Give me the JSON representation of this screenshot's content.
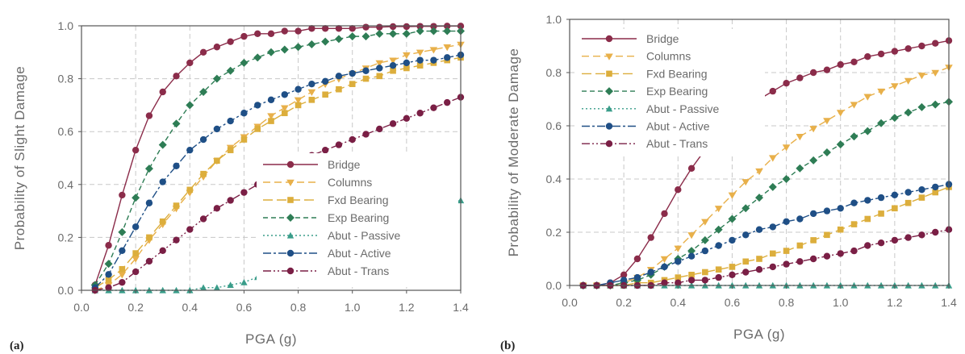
{
  "chart_data": [
    {
      "type": "line",
      "panel_label": "(a)",
      "xlabel": "PGA (g)",
      "ylabel": "Probability of Slight Damage",
      "xlim": [
        0.0,
        1.4
      ],
      "ylim": [
        0.0,
        1.0
      ],
      "x_ticks": [
        "0.0",
        "0.2",
        "0.4",
        "0.6",
        "0.8",
        "1.0",
        "1.2",
        "1.4"
      ],
      "y_ticks": [
        "0.0",
        "0.2",
        "0.4",
        "0.6",
        "0.8",
        "1.0"
      ],
      "grid": true,
      "legend_position": "bottom-right",
      "x": [
        0.05,
        0.1,
        0.15,
        0.2,
        0.25,
        0.3,
        0.35,
        0.4,
        0.45,
        0.5,
        0.55,
        0.6,
        0.65,
        0.7,
        0.75,
        0.8,
        0.85,
        0.9,
        0.95,
        1.0,
        1.05,
        1.1,
        1.15,
        1.2,
        1.25,
        1.3,
        1.35,
        1.4
      ],
      "series": [
        {
          "name": "Bridge",
          "color": "#8b2c4a",
          "marker": "circle",
          "dash": "",
          "values": [
            0.02,
            0.17,
            0.36,
            0.53,
            0.66,
            0.75,
            0.81,
            0.86,
            0.9,
            0.92,
            0.94,
            0.96,
            0.97,
            0.97,
            0.98,
            0.98,
            0.99,
            0.99,
            0.99,
            0.99,
            0.995,
            0.995,
            0.997,
            0.997,
            0.998,
            0.998,
            0.999,
            0.999
          ]
        },
        {
          "name": "Columns",
          "color": "#e8b04a",
          "marker": "triangle-down",
          "dash": "9,5",
          "values": [
            0.0,
            0.02,
            0.06,
            0.12,
            0.19,
            0.25,
            0.31,
            0.37,
            0.43,
            0.49,
            0.54,
            0.58,
            0.62,
            0.66,
            0.69,
            0.72,
            0.75,
            0.78,
            0.8,
            0.82,
            0.84,
            0.86,
            0.87,
            0.89,
            0.9,
            0.91,
            0.92,
            0.93
          ]
        },
        {
          "name": "Fxd Bearing",
          "color": "#dcae3c",
          "marker": "square",
          "dash": "12,5",
          "values": [
            0.01,
            0.04,
            0.08,
            0.14,
            0.2,
            0.26,
            0.32,
            0.38,
            0.44,
            0.49,
            0.53,
            0.57,
            0.61,
            0.64,
            0.67,
            0.7,
            0.72,
            0.74,
            0.76,
            0.78,
            0.8,
            0.81,
            0.83,
            0.84,
            0.85,
            0.86,
            0.87,
            0.88
          ]
        },
        {
          "name": "Exp Bearing",
          "color": "#2e7d55",
          "marker": "diamond",
          "dash": "6,4",
          "values": [
            0.02,
            0.1,
            0.22,
            0.35,
            0.46,
            0.55,
            0.63,
            0.7,
            0.75,
            0.8,
            0.83,
            0.86,
            0.88,
            0.9,
            0.91,
            0.92,
            0.93,
            0.94,
            0.95,
            0.96,
            0.96,
            0.97,
            0.97,
            0.97,
            0.98,
            0.98,
            0.98,
            0.98
          ]
        },
        {
          "name": "Abut - Passive",
          "color": "#3a9d8a",
          "marker": "triangle-up",
          "dash": "2,3",
          "values": [
            0.0,
            0.0,
            0.0,
            0.0,
            0.0,
            0.0,
            0.0,
            0.0,
            0.01,
            0.01,
            0.02,
            0.03,
            0.05,
            0.07,
            0.09,
            0.11,
            0.13,
            0.16,
            0.18,
            0.21,
            0.23,
            0.25,
            0.27,
            0.29,
            0.31,
            0.32,
            0.33,
            0.34
          ]
        },
        {
          "name": "Abut - Active",
          "color": "#1f4f86",
          "marker": "circle",
          "dash": "10,3,3,3",
          "values": [
            0.01,
            0.06,
            0.15,
            0.24,
            0.33,
            0.41,
            0.47,
            0.53,
            0.57,
            0.61,
            0.64,
            0.67,
            0.7,
            0.72,
            0.74,
            0.76,
            0.78,
            0.79,
            0.81,
            0.82,
            0.83,
            0.84,
            0.85,
            0.86,
            0.87,
            0.87,
            0.88,
            0.89
          ]
        },
        {
          "name": "Abut - Trans",
          "color": "#7a1f45",
          "marker": "circle",
          "dash": "10,3,2,3,2,3",
          "values": [
            0.0,
            0.01,
            0.03,
            0.07,
            0.11,
            0.15,
            0.19,
            0.23,
            0.27,
            0.31,
            0.34,
            0.37,
            0.4,
            0.43,
            0.46,
            0.48,
            0.51,
            0.53,
            0.55,
            0.57,
            0.59,
            0.61,
            0.63,
            0.65,
            0.67,
            0.69,
            0.71,
            0.73
          ]
        }
      ]
    },
    {
      "type": "line",
      "panel_label": "(b)",
      "xlabel": "PGA (g)",
      "ylabel": "Probability of Moderate Damage",
      "xlim": [
        0.0,
        1.4
      ],
      "ylim": [
        0.0,
        1.0
      ],
      "x_ticks": [
        "0.0",
        "0.2",
        "0.4",
        "0.6",
        "0.8",
        "1.0",
        "1.2",
        "1.4"
      ],
      "y_ticks": [
        "0.0",
        "0.2",
        "0.4",
        "0.6",
        "0.8",
        "1.0"
      ],
      "grid": true,
      "legend_position": "top-left",
      "x": [
        0.05,
        0.1,
        0.15,
        0.2,
        0.25,
        0.3,
        0.35,
        0.4,
        0.45,
        0.5,
        0.55,
        0.6,
        0.65,
        0.7,
        0.75,
        0.8,
        0.85,
        0.9,
        0.95,
        1.0,
        1.05,
        1.1,
        1.15,
        1.2,
        1.25,
        1.3,
        1.35,
        1.4
      ],
      "series": [
        {
          "name": "Bridge",
          "color": "#8b2c4a",
          "marker": "circle",
          "dash": "",
          "values": [
            0.0,
            0.0,
            0.01,
            0.04,
            0.1,
            0.18,
            0.27,
            0.36,
            0.44,
            0.51,
            0.57,
            0.63,
            0.67,
            0.7,
            0.73,
            0.76,
            0.78,
            0.8,
            0.81,
            0.83,
            0.84,
            0.86,
            0.87,
            0.88,
            0.89,
            0.9,
            0.91,
            0.92
          ]
        },
        {
          "name": "Columns",
          "color": "#e8b04a",
          "marker": "triangle-down",
          "dash": "9,5",
          "values": [
            0.0,
            0.0,
            0.0,
            0.01,
            0.03,
            0.06,
            0.1,
            0.14,
            0.19,
            0.24,
            0.29,
            0.34,
            0.39,
            0.43,
            0.48,
            0.52,
            0.56,
            0.59,
            0.62,
            0.65,
            0.68,
            0.71,
            0.73,
            0.75,
            0.77,
            0.79,
            0.8,
            0.82
          ]
        },
        {
          "name": "Fxd Bearing",
          "color": "#dcae3c",
          "marker": "square",
          "dash": "12,5",
          "values": [
            0.0,
            0.0,
            0.0,
            0.0,
            0.01,
            0.01,
            0.02,
            0.03,
            0.04,
            0.05,
            0.06,
            0.07,
            0.09,
            0.1,
            0.12,
            0.13,
            0.15,
            0.17,
            0.19,
            0.21,
            0.23,
            0.25,
            0.27,
            0.29,
            0.31,
            0.33,
            0.35,
            0.37
          ]
        },
        {
          "name": "Exp Bearing",
          "color": "#2e7d55",
          "marker": "diamond",
          "dash": "6,4",
          "values": [
            0.0,
            0.0,
            0.0,
            0.01,
            0.02,
            0.04,
            0.07,
            0.1,
            0.13,
            0.17,
            0.21,
            0.25,
            0.29,
            0.33,
            0.37,
            0.4,
            0.44,
            0.47,
            0.5,
            0.53,
            0.56,
            0.58,
            0.61,
            0.63,
            0.65,
            0.67,
            0.68,
            0.69
          ]
        },
        {
          "name": "Abut - Passive",
          "color": "#3a9d8a",
          "marker": "triangle-up",
          "dash": "2,3",
          "values": [
            0.0,
            0.0,
            0.0,
            0.0,
            0.0,
            0.0,
            0.0,
            0.0,
            0.0,
            0.0,
            0.0,
            0.0,
            0.0,
            0.0,
            0.0,
            0.0,
            0.0,
            0.0,
            0.0,
            0.0,
            0.0,
            0.0,
            0.0,
            0.0,
            0.0,
            0.0,
            0.0,
            0.0
          ]
        },
        {
          "name": "Abut - Active",
          "color": "#1f4f86",
          "marker": "circle",
          "dash": "10,3,3,3",
          "values": [
            0.0,
            0.0,
            0.01,
            0.02,
            0.03,
            0.05,
            0.07,
            0.09,
            0.11,
            0.13,
            0.15,
            0.17,
            0.19,
            0.21,
            0.22,
            0.24,
            0.25,
            0.27,
            0.28,
            0.29,
            0.31,
            0.32,
            0.33,
            0.34,
            0.35,
            0.36,
            0.37,
            0.38
          ]
        },
        {
          "name": "Abut - Trans",
          "color": "#7a1f45",
          "marker": "circle",
          "dash": "10,3,2,3,2,3",
          "values": [
            0.0,
            0.0,
            0.0,
            0.0,
            0.0,
            0.0,
            0.01,
            0.01,
            0.02,
            0.02,
            0.03,
            0.04,
            0.05,
            0.06,
            0.07,
            0.08,
            0.09,
            0.1,
            0.11,
            0.12,
            0.13,
            0.15,
            0.16,
            0.17,
            0.18,
            0.19,
            0.2,
            0.21
          ]
        }
      ]
    }
  ]
}
